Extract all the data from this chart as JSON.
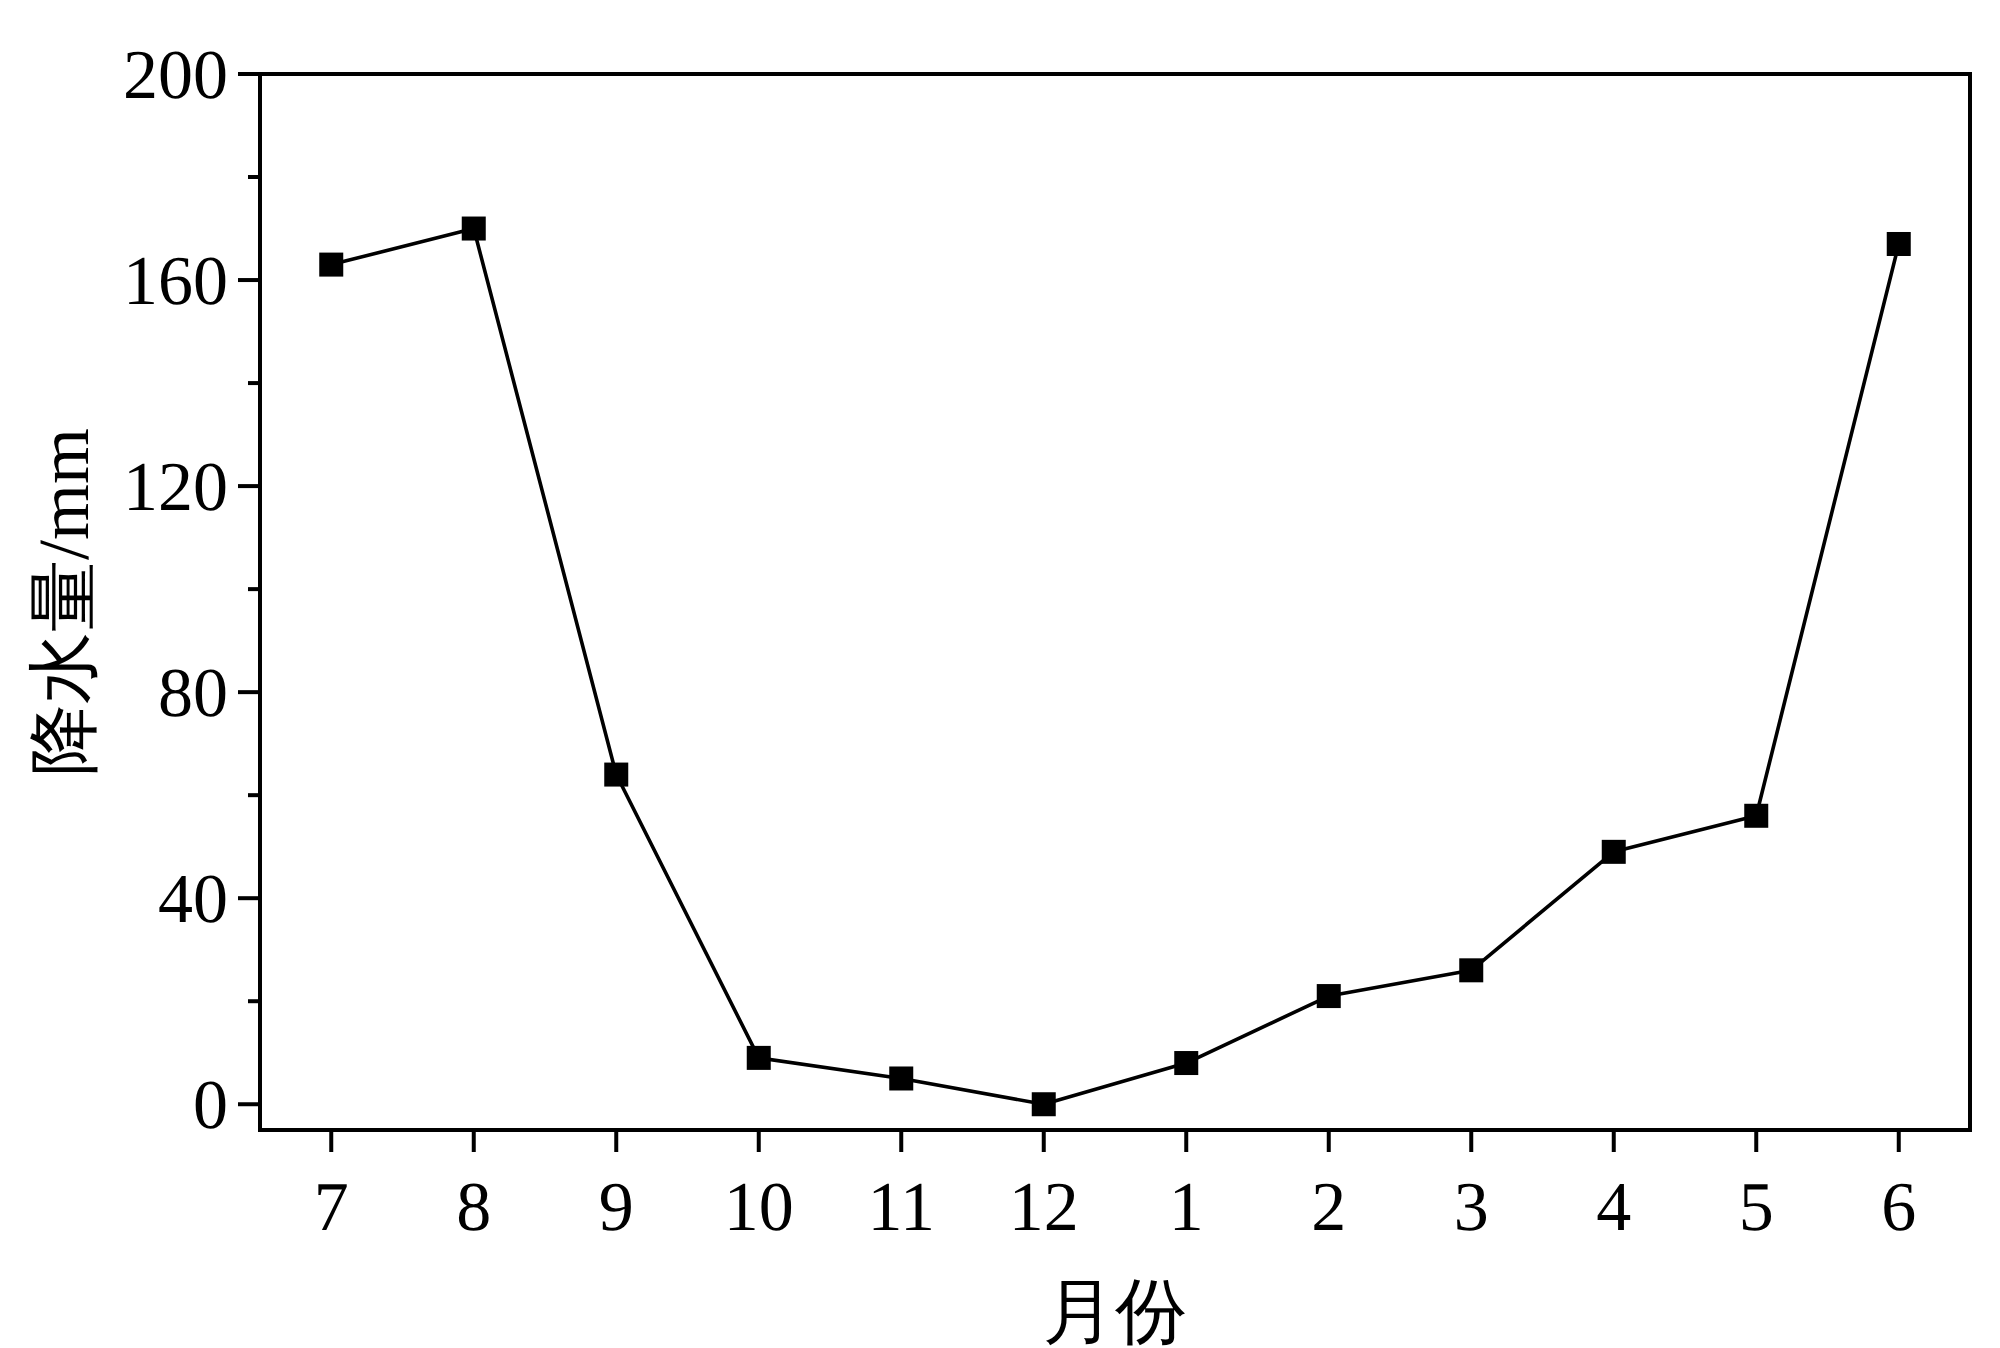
{
  "chart_data": {
    "type": "line",
    "xlabel": "月份",
    "ylabel": "降水量/mm",
    "categories": [
      "7",
      "8",
      "9",
      "10",
      "11",
      "12",
      "1",
      "2",
      "3",
      "4",
      "5",
      "6"
    ],
    "series": [
      {
        "color": "#000000",
        "values": [
          163,
          170,
          64,
          9,
          5,
          0,
          8,
          21,
          26,
          49,
          56,
          167
        ]
      }
    ],
    "ylim": [
      -5,
      200
    ],
    "yticks": [
      0,
      {
        "value": 20,
        "label": null
      },
      40,
      {
        "value": 60,
        "label": null
      },
      80,
      {
        "value": 100,
        "label": null
      },
      120,
      {
        "value": 140,
        "label": null
      },
      160,
      {
        "value": 180,
        "label": null
      },
      200
    ],
    "marker": "square",
    "line_style": "solid",
    "grid": false
  }
}
